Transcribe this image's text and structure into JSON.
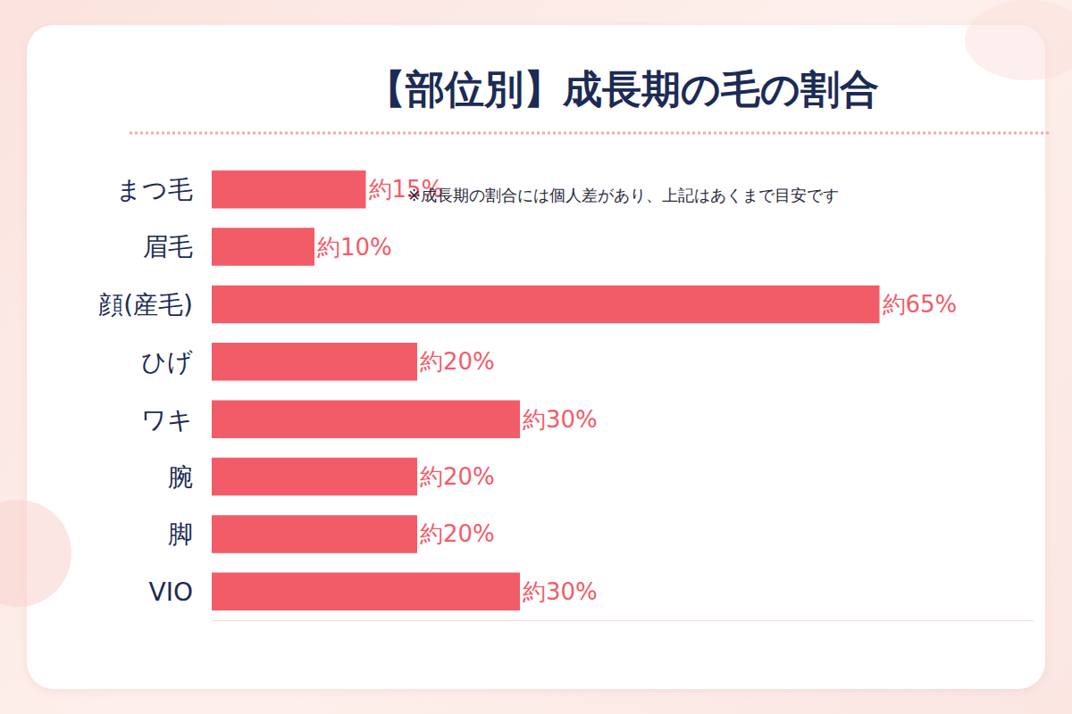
{
  "chart_data": {
    "type": "bar",
    "title": "【部位別】成長期の毛の割合",
    "orientation": "horizontal",
    "categories": [
      "まつ毛",
      "眉毛",
      "顔(産毛)",
      "ひげ",
      "ワキ",
      "腕",
      "脚",
      "VIO"
    ],
    "values": [
      15,
      10,
      65,
      20,
      30,
      20,
      20,
      30
    ],
    "value_labels": [
      "約15%",
      "約10%",
      "約65%",
      "約20%",
      "約30%",
      "約20%",
      "約20%",
      "約30%"
    ],
    "data_labels": true,
    "color": "#f25c69",
    "xlim": [
      0,
      80
    ],
    "grid": false,
    "tick_labels": "y",
    "annotations": [
      "※成長期の割合には個人差があり、上記はあくまで目安です"
    ]
  }
}
